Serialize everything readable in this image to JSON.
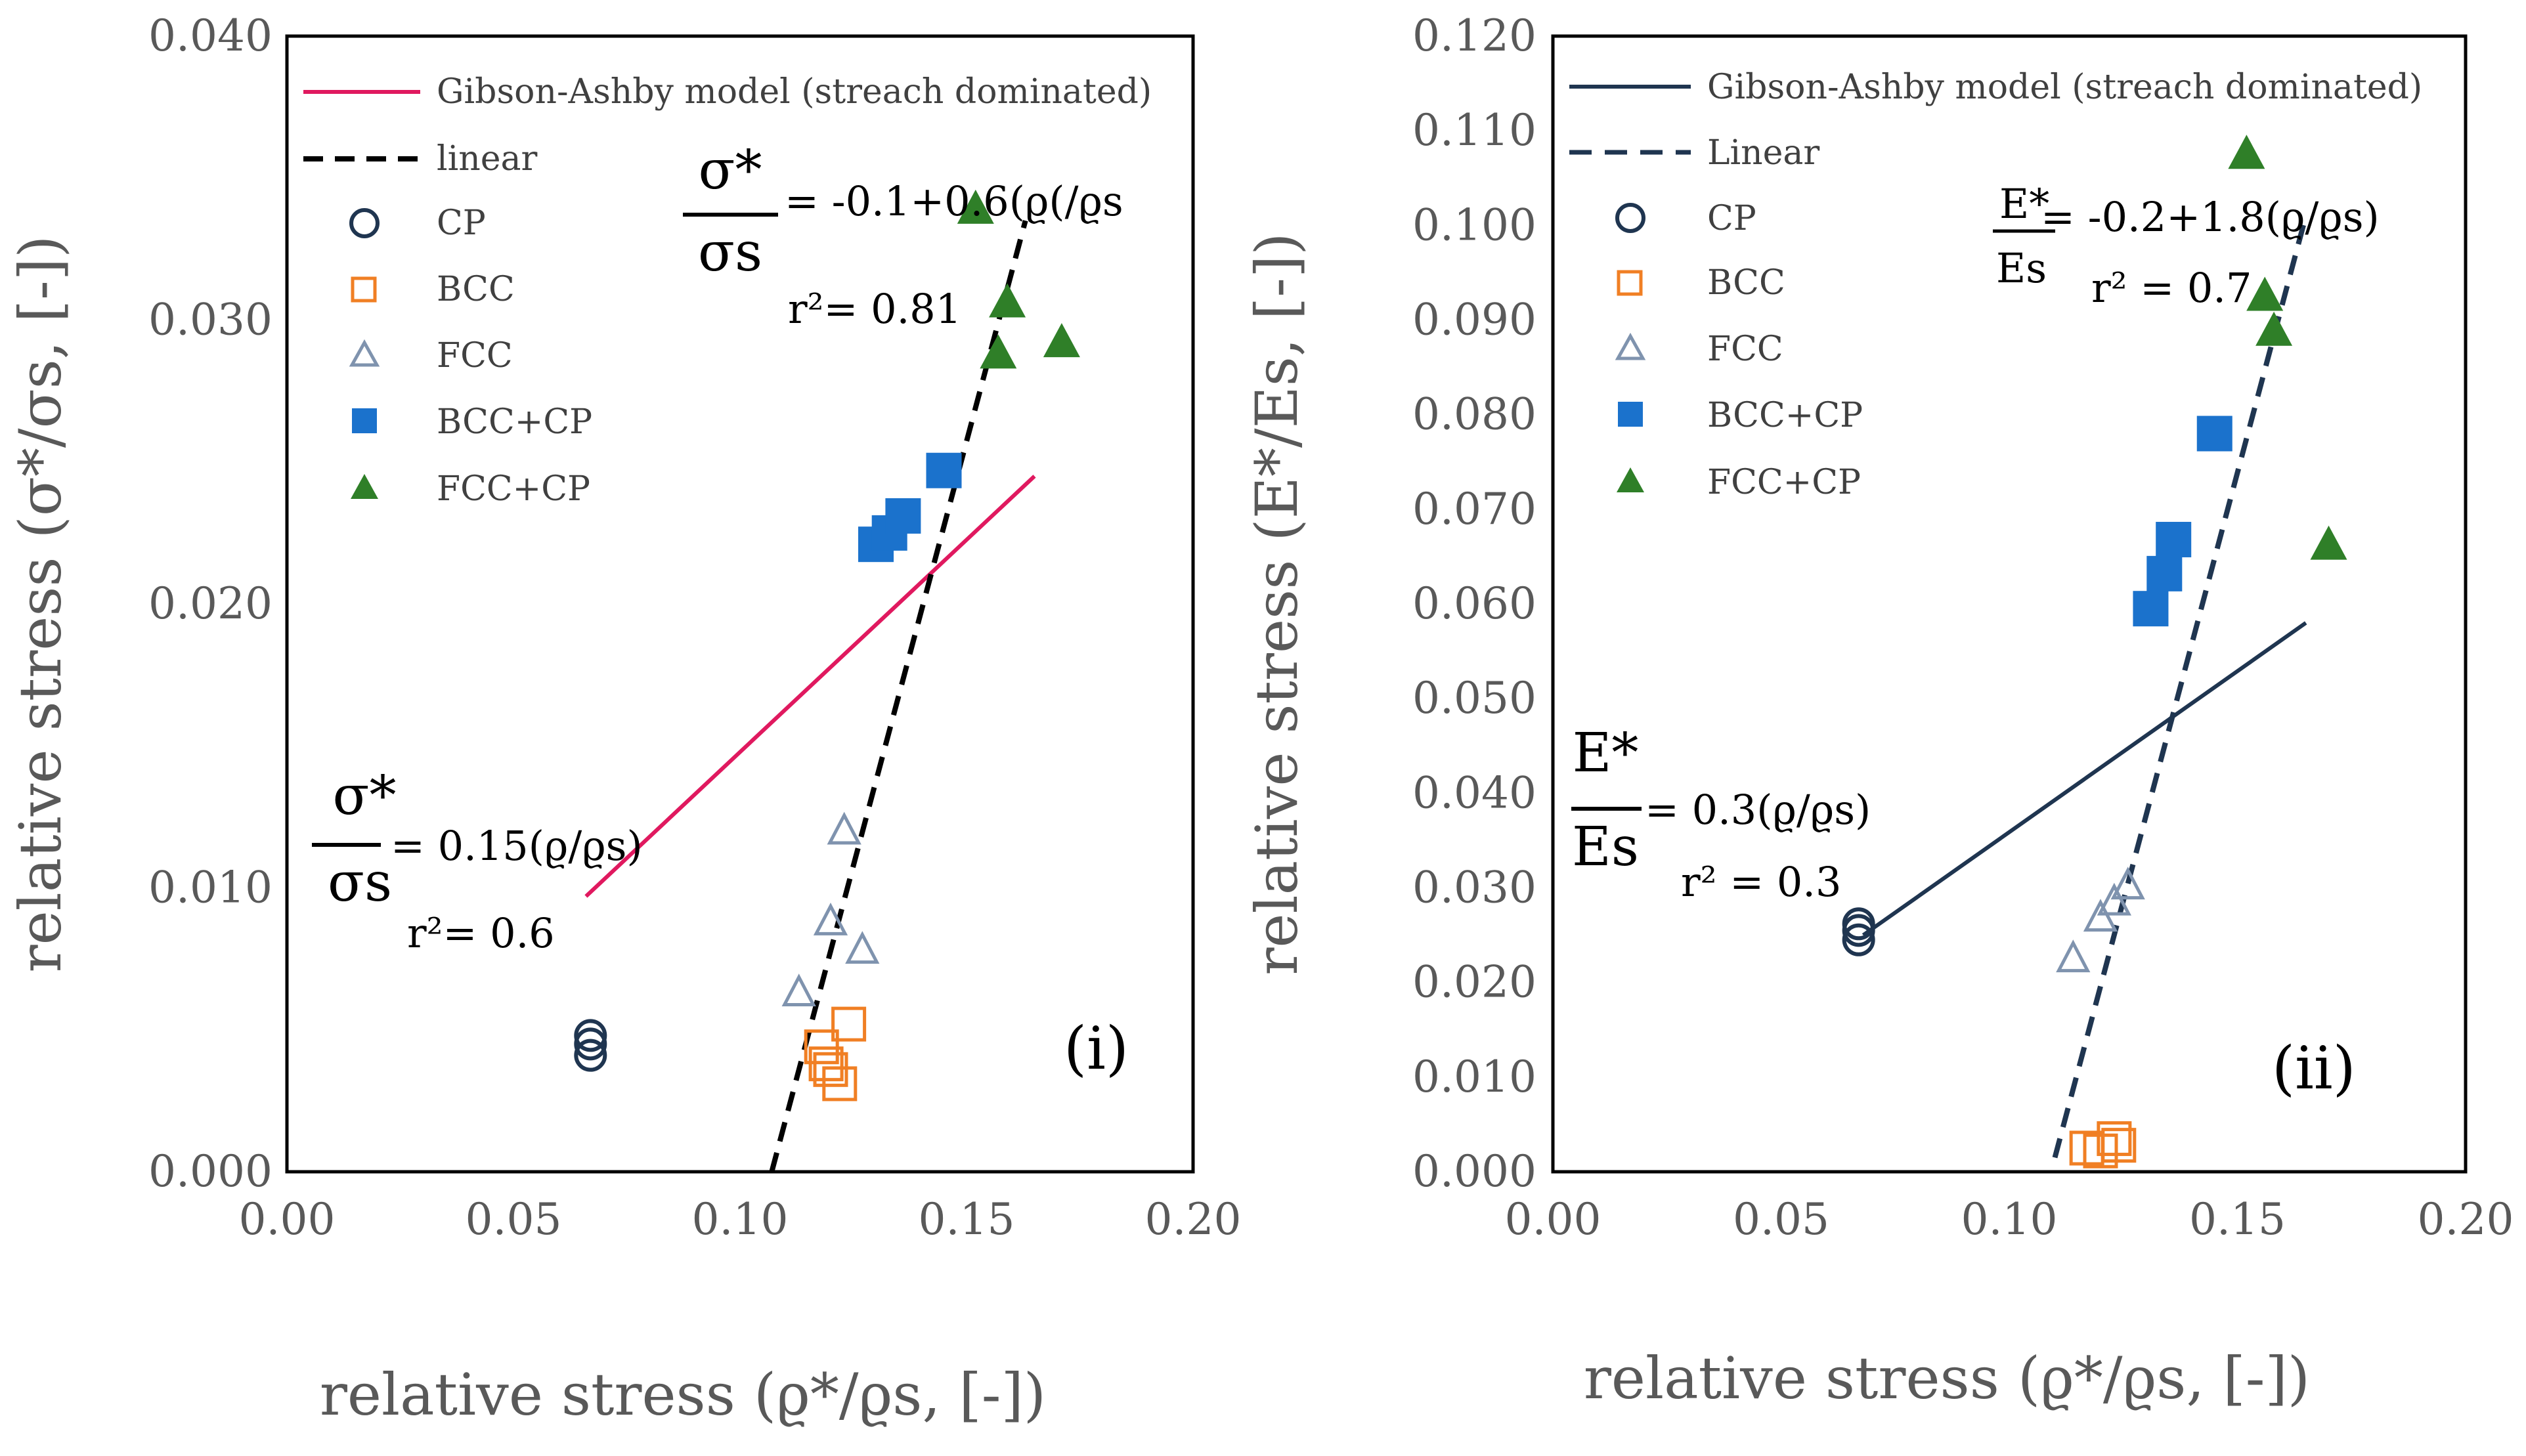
{
  "chart_data": [
    {
      "type": "scatter",
      "panel_label": "(i)",
      "xlabel": "relative stress (ϱ*/ϱs, [-])",
      "ylabel": "relative stress (σ*/σs, [-])",
      "xlim": [
        0,
        0.2
      ],
      "ylim": [
        0,
        0.04
      ],
      "xticks": [
        "0.00",
        "0.05",
        "0.10",
        "0.15",
        "0.20"
      ],
      "yticks": [
        "0.000",
        "0.010",
        "0.020",
        "0.030",
        "0.040"
      ],
      "grid": false,
      "legend_position": "top-left",
      "series": [
        {
          "name": "Gibson-Ashby model (streach dominated)",
          "kind": "line",
          "style": "solid",
          "color": "#e0195f",
          "points": [
            [
              0.066,
              0.0097
            ],
            [
              0.165,
              0.0245
            ]
          ]
        },
        {
          "name": "linear",
          "kind": "line",
          "style": "dashed",
          "color": "#000000",
          "points": [
            [
              0.107,
              0.0
            ],
            [
              0.163,
              0.0335
            ]
          ]
        },
        {
          "name": "CP",
          "kind": "scatter",
          "marker": "circle-open",
          "color": "#1f3550",
          "points": [
            [
              0.067,
              0.0041
            ],
            [
              0.067,
              0.0045
            ],
            [
              0.067,
              0.0048
            ]
          ]
        },
        {
          "name": "BCC",
          "kind": "scatter",
          "marker": "square-open",
          "color": "#f07f24",
          "points": [
            [
              0.118,
              0.0044
            ],
            [
              0.119,
              0.0038
            ],
            [
              0.122,
              0.0031
            ],
            [
              0.124,
              0.0052
            ],
            [
              0.12,
              0.0036
            ]
          ]
        },
        {
          "name": "FCC",
          "kind": "scatter",
          "marker": "triangle-open",
          "color": "#7f93ae",
          "points": [
            [
              0.113,
              0.0063
            ],
            [
              0.12,
              0.0088
            ],
            [
              0.123,
              0.012
            ],
            [
              0.127,
              0.0078
            ]
          ]
        },
        {
          "name": "BCC+CP",
          "kind": "scatter",
          "marker": "square-filled",
          "color": "#1b72cc",
          "points": [
            [
              0.13,
              0.0221
            ],
            [
              0.133,
              0.0225
            ],
            [
              0.136,
              0.0231
            ],
            [
              0.145,
              0.0247
            ]
          ]
        },
        {
          "name": "FCC+CP",
          "kind": "scatter",
          "marker": "triangle-filled",
          "color": "#2f7f28",
          "points": [
            [
              0.152,
              0.0339
            ],
            [
              0.157,
              0.0288
            ],
            [
              0.159,
              0.0306
            ],
            [
              0.171,
              0.0292
            ]
          ]
        }
      ],
      "annotations": {
        "linear_eq": {
          "lhs_num": "σ*",
          "lhs_den": "σs",
          "rhs": "= -0.1+0.6(ϱ(/ϱs",
          "r2": "r²= 0.81"
        },
        "model_eq": {
          "lhs_num": "σ*",
          "lhs_den": "σs",
          "rhs": "= 0.15(ϱ/ϱs)",
          "r2": "r²= 0.6"
        }
      }
    },
    {
      "type": "scatter",
      "panel_label": "(ii)",
      "xlabel": "relative stress (ϱ*/ϱs, [-])",
      "ylabel": "relative stress (E*/Es, [-])",
      "xlim": [
        0,
        0.2
      ],
      "ylim": [
        0,
        0.12
      ],
      "xticks": [
        "0.00",
        "0.05",
        "0.10",
        "0.15",
        "0.20"
      ],
      "yticks": [
        "0.000",
        "0.010",
        "0.020",
        "0.030",
        "0.040",
        "0.050",
        "0.060",
        "0.070",
        "0.080",
        "0.090",
        "0.100",
        "0.110",
        "0.120"
      ],
      "grid": false,
      "legend_position": "top-left",
      "series": [
        {
          "name": "Gibson-Ashby model (streach dominated)",
          "kind": "line",
          "style": "solid",
          "color": "#1f3550",
          "points": [
            [
              0.068,
              0.025
            ],
            [
              0.165,
              0.058
            ]
          ]
        },
        {
          "name": "Linear",
          "kind": "line",
          "style": "dashed",
          "color": "#1f3550",
          "points": [
            [
              0.11,
              0.0015
            ],
            [
              0.165,
              0.101
            ]
          ]
        },
        {
          "name": "CP",
          "kind": "scatter",
          "marker": "circle-open",
          "color": "#1f3550",
          "points": [
            [
              0.067,
              0.0245
            ],
            [
              0.067,
              0.0255
            ],
            [
              0.067,
              0.0262
            ]
          ]
        },
        {
          "name": "BCC",
          "kind": "scatter",
          "marker": "square-open",
          "color": "#f07f24",
          "points": [
            [
              0.117,
              0.0025
            ],
            [
              0.12,
              0.0022
            ],
            [
              0.123,
              0.0035
            ],
            [
              0.124,
              0.0028
            ]
          ]
        },
        {
          "name": "FCC",
          "kind": "scatter",
          "marker": "triangle-open",
          "color": "#7f93ae",
          "points": [
            [
              0.114,
              0.0225
            ],
            [
              0.12,
              0.0268
            ],
            [
              0.123,
              0.0285
            ],
            [
              0.126,
              0.0302
            ]
          ]
        },
        {
          "name": "BCC+CP",
          "kind": "scatter",
          "marker": "square-filled",
          "color": "#1b72cc",
          "points": [
            [
              0.131,
              0.0595
            ],
            [
              0.134,
              0.0632
            ],
            [
              0.136,
              0.0668
            ],
            [
              0.145,
              0.078
            ]
          ]
        },
        {
          "name": "FCC+CP",
          "kind": "scatter",
          "marker": "triangle-filled",
          "color": "#2f7f28",
          "points": [
            [
              0.152,
              0.1075
            ],
            [
              0.156,
              0.0925
            ],
            [
              0.158,
              0.0888
            ],
            [
              0.17,
              0.0662
            ]
          ]
        }
      ],
      "annotations": {
        "linear_eq": {
          "lhs_num": "E*",
          "lhs_den": "Es",
          "rhs": "= -0.2+1.8(ϱ/ϱs)",
          "r2": "r² = 0.7"
        },
        "model_eq": {
          "lhs_num": "E*",
          "lhs_den": "Es",
          "rhs": "= 0.3(ϱ/ϱs)",
          "r2": "r² = 0.3"
        }
      }
    }
  ]
}
